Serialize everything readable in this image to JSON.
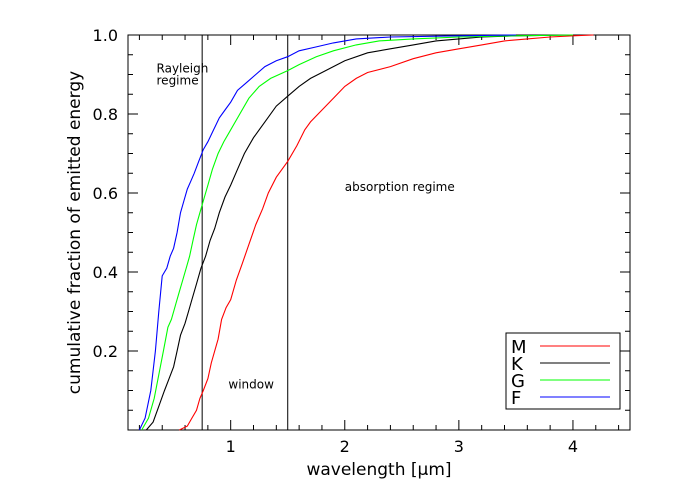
{
  "chart_data": {
    "type": "line",
    "title": "",
    "xlabel": "wavelength [µm]",
    "ylabel": "cumulative fraction of emitted energy",
    "xlim": [
      0.1,
      4.5
    ],
    "ylim": [
      0.0,
      1.0
    ],
    "xticks": [
      1,
      2,
      3,
      4
    ],
    "xtick_labels": [
      "1",
      "2",
      "3",
      "4"
    ],
    "yticks": [
      0.2,
      0.4,
      0.6,
      0.8,
      1.0
    ],
    "ytick_labels": [
      "0.2",
      "0.4",
      "0.6",
      "0.8",
      "1.0"
    ],
    "vlines": [
      0.75,
      1.5
    ],
    "annotations": [
      {
        "text": "Rayleigh",
        "x": 0.35,
        "y": 0.905
      },
      {
        "text": "regime",
        "x": 0.35,
        "y": 0.875
      },
      {
        "text": "absorption regime",
        "x": 2.0,
        "y": 0.605
      },
      {
        "text": "window",
        "x": 0.98,
        "y": 0.105
      }
    ],
    "legend": {
      "position": "bottom-right",
      "entries": [
        {
          "label": "M",
          "color": "#ff0000"
        },
        {
          "label": "K",
          "color": "#000000"
        },
        {
          "label": "G",
          "color": "#00ff00"
        },
        {
          "label": "F",
          "color": "#0000ff"
        }
      ]
    },
    "series": [
      {
        "name": "M",
        "color": "#ff0000",
        "points": [
          [
            0.55,
            0.0
          ],
          [
            0.62,
            0.01
          ],
          [
            0.66,
            0.03
          ],
          [
            0.7,
            0.05
          ],
          [
            0.73,
            0.08
          ],
          [
            0.76,
            0.1
          ],
          [
            0.8,
            0.13
          ],
          [
            0.83,
            0.17
          ],
          [
            0.86,
            0.2
          ],
          [
            0.89,
            0.23
          ],
          [
            0.92,
            0.28
          ],
          [
            0.96,
            0.31
          ],
          [
            1.0,
            0.33
          ],
          [
            1.05,
            0.38
          ],
          [
            1.1,
            0.42
          ],
          [
            1.16,
            0.47
          ],
          [
            1.22,
            0.52
          ],
          [
            1.28,
            0.56
          ],
          [
            1.33,
            0.6
          ],
          [
            1.4,
            0.64
          ],
          [
            1.5,
            0.68
          ],
          [
            1.58,
            0.72
          ],
          [
            1.65,
            0.76
          ],
          [
            1.7,
            0.78
          ],
          [
            1.8,
            0.81
          ],
          [
            1.9,
            0.84
          ],
          [
            2.0,
            0.87
          ],
          [
            2.1,
            0.89
          ],
          [
            2.2,
            0.905
          ],
          [
            2.4,
            0.92
          ],
          [
            2.6,
            0.94
          ],
          [
            2.8,
            0.955
          ],
          [
            3.0,
            0.965
          ],
          [
            3.2,
            0.975
          ],
          [
            3.4,
            0.985
          ],
          [
            3.6,
            0.99
          ],
          [
            3.8,
            0.995
          ],
          [
            4.0,
            0.998
          ],
          [
            4.18,
            1.0
          ]
        ]
      },
      {
        "name": "K",
        "color": "#000000",
        "points": [
          [
            0.26,
            0.0
          ],
          [
            0.32,
            0.02
          ],
          [
            0.37,
            0.06
          ],
          [
            0.42,
            0.1
          ],
          [
            0.46,
            0.13
          ],
          [
            0.5,
            0.16
          ],
          [
            0.53,
            0.2
          ],
          [
            0.56,
            0.24
          ],
          [
            0.6,
            0.27
          ],
          [
            0.63,
            0.3
          ],
          [
            0.66,
            0.33
          ],
          [
            0.7,
            0.37
          ],
          [
            0.74,
            0.41
          ],
          [
            0.78,
            0.44
          ],
          [
            0.82,
            0.48
          ],
          [
            0.86,
            0.51
          ],
          [
            0.9,
            0.55
          ],
          [
            0.95,
            0.59
          ],
          [
            1.0,
            0.62
          ],
          [
            1.06,
            0.66
          ],
          [
            1.12,
            0.7
          ],
          [
            1.2,
            0.74
          ],
          [
            1.3,
            0.78
          ],
          [
            1.4,
            0.82
          ],
          [
            1.5,
            0.845
          ],
          [
            1.6,
            0.87
          ],
          [
            1.7,
            0.89
          ],
          [
            1.8,
            0.905
          ],
          [
            1.9,
            0.92
          ],
          [
            2.0,
            0.935
          ],
          [
            2.2,
            0.955
          ],
          [
            2.4,
            0.965
          ],
          [
            2.6,
            0.975
          ],
          [
            2.8,
            0.985
          ],
          [
            3.0,
            0.99
          ],
          [
            3.2,
            0.995
          ],
          [
            3.5,
            0.998
          ],
          [
            4.0,
            1.0
          ]
        ]
      },
      {
        "name": "G",
        "color": "#00ff00",
        "points": [
          [
            0.22,
            0.0
          ],
          [
            0.28,
            0.03
          ],
          [
            0.33,
            0.08
          ],
          [
            0.37,
            0.14
          ],
          [
            0.41,
            0.2
          ],
          [
            0.45,
            0.26
          ],
          [
            0.48,
            0.28
          ],
          [
            0.52,
            0.32
          ],
          [
            0.55,
            0.35
          ],
          [
            0.58,
            0.38
          ],
          [
            0.61,
            0.41
          ],
          [
            0.64,
            0.44
          ],
          [
            0.67,
            0.48
          ],
          [
            0.7,
            0.52
          ],
          [
            0.73,
            0.55
          ],
          [
            0.76,
            0.58
          ],
          [
            0.8,
            0.62
          ],
          [
            0.84,
            0.66
          ],
          [
            0.89,
            0.7
          ],
          [
            0.94,
            0.73
          ],
          [
            1.0,
            0.76
          ],
          [
            1.08,
            0.8
          ],
          [
            1.16,
            0.84
          ],
          [
            1.25,
            0.87
          ],
          [
            1.35,
            0.89
          ],
          [
            1.5,
            0.91
          ],
          [
            1.6,
            0.925
          ],
          [
            1.75,
            0.945
          ],
          [
            1.9,
            0.96
          ],
          [
            2.1,
            0.975
          ],
          [
            2.3,
            0.985
          ],
          [
            2.6,
            0.99
          ],
          [
            3.0,
            0.995
          ],
          [
            3.5,
            0.998
          ],
          [
            4.0,
            1.0
          ]
        ]
      },
      {
        "name": "F",
        "color": "#0000ff",
        "points": [
          [
            0.2,
            0.0
          ],
          [
            0.25,
            0.03
          ],
          [
            0.3,
            0.1
          ],
          [
            0.34,
            0.2
          ],
          [
            0.37,
            0.3
          ],
          [
            0.4,
            0.39
          ],
          [
            0.44,
            0.41
          ],
          [
            0.47,
            0.44
          ],
          [
            0.5,
            0.46
          ],
          [
            0.53,
            0.5
          ],
          [
            0.56,
            0.55
          ],
          [
            0.59,
            0.58
          ],
          [
            0.62,
            0.61
          ],
          [
            0.65,
            0.63
          ],
          [
            0.68,
            0.65
          ],
          [
            0.72,
            0.68
          ],
          [
            0.76,
            0.71
          ],
          [
            0.8,
            0.73
          ],
          [
            0.85,
            0.76
          ],
          [
            0.9,
            0.79
          ],
          [
            0.95,
            0.81
          ],
          [
            1.0,
            0.83
          ],
          [
            1.06,
            0.86
          ],
          [
            1.14,
            0.88
          ],
          [
            1.22,
            0.9
          ],
          [
            1.3,
            0.92
          ],
          [
            1.4,
            0.935
          ],
          [
            1.5,
            0.945
          ],
          [
            1.6,
            0.96
          ],
          [
            1.75,
            0.97
          ],
          [
            1.9,
            0.98
          ],
          [
            2.1,
            0.99
          ],
          [
            2.4,
            0.995
          ],
          [
            3.0,
            0.998
          ],
          [
            3.5,
            1.0
          ]
        ]
      }
    ]
  }
}
